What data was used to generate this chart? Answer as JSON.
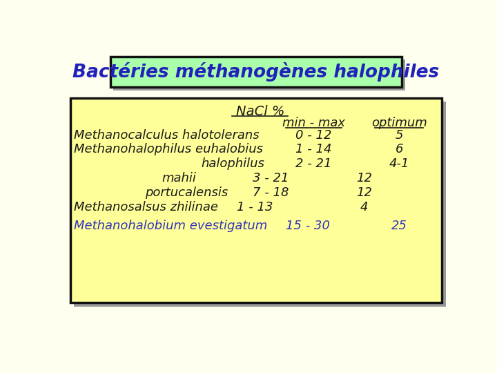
{
  "title": "Bactéries méthanogènes halophiles",
  "title_bg": "#aaffaa",
  "title_color": "#2222bb",
  "title_border": "#111111",
  "page_bg": "#fffff0",
  "table_bg": "#ffff99",
  "table_border": "#111111",
  "shadow_color": "#999999",
  "nacl_label": "NaCl %",
  "col_header_minmax": "min - max",
  "col_header_opt": "optimum",
  "text_dark": "#1a1a1a",
  "text_blue": "#3333bb",
  "font_size_title": 19,
  "font_size_table": 13,
  "rows": [
    {
      "name": "Methanocalculus halotolerans",
      "min_max": "0 - 12",
      "optimum": "5",
      "color": "#1a1a1a",
      "layout": "full"
    },
    {
      "name": "Methanohalophilus euhalobius",
      "min_max": "1 - 14",
      "optimum": "6",
      "color": "#1a1a1a",
      "layout": "full"
    },
    {
      "name": "halophilus",
      "min_max": "2 - 21",
      "optimum": "4-1",
      "color": "#1a1a1a",
      "layout": "indent1_full"
    },
    {
      "name": "mahii",
      "min_max": "3 - 21",
      "optimum": "12",
      "color": "#1a1a1a",
      "layout": "indent2_mid"
    },
    {
      "name": "portucalensis",
      "min_max": "7 - 18",
      "optimum": "12",
      "color": "#1a1a1a",
      "layout": "indent2_mid"
    },
    {
      "name": "Methanosalsus zhilinae",
      "min_max": "1 - 13",
      "optimum": "4",
      "color": "#1a1a1a",
      "layout": "left_mid"
    },
    {
      "name": "Methanohalobium evestigatum",
      "min_max": "15 - 30",
      "optimum": "25",
      "color": "#3333bb",
      "layout": "left_right"
    }
  ]
}
